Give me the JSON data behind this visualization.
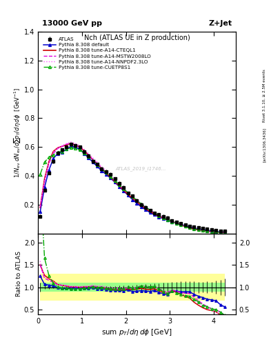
{
  "title_left": "13000 GeV pp",
  "title_right": "Z+Jet",
  "plot_title": "Nch (ATLAS UE in Z production)",
  "xlabel": "sum p_{T}/d\\eta d\\phi [GeV]",
  "ylabel_main": "1/N_{ev} dN_{ev}/dsum p_{T}/d\\eta d\\phi  [GeV^{-1}]",
  "ylabel_ratio": "Ratio to ATLAS",
  "right_label_1": "Rivet 3.1.10, ≥ 2.5M events",
  "right_label_2": "[arXiv:1306.3436]",
  "watermark": "ATLAS_2019_I1746...",
  "xlim": [
    0,
    4.5
  ],
  "ylim_main": [
    0,
    1.4
  ],
  "ylim_ratio": [
    0.4,
    2.2
  ],
  "ratio_yticks": [
    0.5,
    1.0,
    1.5,
    2.0
  ],
  "main_yticks": [
    0.2,
    0.4,
    0.6,
    0.8,
    1.0,
    1.2,
    1.4
  ],
  "x_data": [
    0.05,
    0.15,
    0.25,
    0.35,
    0.45,
    0.55,
    0.65,
    0.75,
    0.85,
    0.95,
    1.05,
    1.15,
    1.25,
    1.35,
    1.45,
    1.55,
    1.65,
    1.75,
    1.85,
    1.95,
    2.05,
    2.15,
    2.25,
    2.35,
    2.45,
    2.55,
    2.65,
    2.75,
    2.85,
    2.95,
    3.05,
    3.15,
    3.25,
    3.35,
    3.45,
    3.55,
    3.65,
    3.75,
    3.85,
    3.95,
    4.05,
    4.15,
    4.25
  ],
  "atlas_y": [
    0.12,
    0.3,
    0.42,
    0.5,
    0.56,
    0.58,
    0.6,
    0.62,
    0.61,
    0.6,
    0.57,
    0.54,
    0.5,
    0.48,
    0.45,
    0.43,
    0.41,
    0.38,
    0.35,
    0.32,
    0.28,
    0.26,
    0.23,
    0.2,
    0.18,
    0.16,
    0.14,
    0.13,
    0.12,
    0.11,
    0.09,
    0.08,
    0.07,
    0.06,
    0.05,
    0.045,
    0.04,
    0.035,
    0.03,
    0.025,
    0.02,
    0.018,
    0.016
  ],
  "atlas_yerr": [
    0.012,
    0.012,
    0.012,
    0.012,
    0.012,
    0.012,
    0.012,
    0.012,
    0.012,
    0.012,
    0.012,
    0.012,
    0.012,
    0.012,
    0.012,
    0.012,
    0.012,
    0.012,
    0.012,
    0.012,
    0.012,
    0.012,
    0.012,
    0.012,
    0.012,
    0.012,
    0.012,
    0.012,
    0.012,
    0.012,
    0.01,
    0.01,
    0.009,
    0.008,
    0.007,
    0.006,
    0.005,
    0.004,
    0.004,
    0.003,
    0.003,
    0.003,
    0.003
  ],
  "pythia_default_y": [
    0.15,
    0.32,
    0.44,
    0.52,
    0.555,
    0.565,
    0.585,
    0.605,
    0.6,
    0.585,
    0.555,
    0.525,
    0.495,
    0.465,
    0.435,
    0.41,
    0.385,
    0.355,
    0.325,
    0.295,
    0.265,
    0.235,
    0.21,
    0.185,
    0.165,
    0.145,
    0.13,
    0.115,
    0.103,
    0.092,
    0.082,
    0.073,
    0.063,
    0.054,
    0.045,
    0.038,
    0.032,
    0.027,
    0.022,
    0.018,
    0.014,
    0.011,
    0.009
  ],
  "pythia_cteql1_y": [
    0.18,
    0.38,
    0.5,
    0.57,
    0.595,
    0.605,
    0.615,
    0.625,
    0.615,
    0.6,
    0.575,
    0.545,
    0.51,
    0.48,
    0.45,
    0.42,
    0.39,
    0.36,
    0.33,
    0.3,
    0.27,
    0.245,
    0.22,
    0.195,
    0.172,
    0.152,
    0.135,
    0.12,
    0.107,
    0.095,
    0.083,
    0.071,
    0.059,
    0.048,
    0.038,
    0.03,
    0.024,
    0.019,
    0.015,
    0.012,
    0.009,
    0.007,
    0.005
  ],
  "pythia_mstw_y": [
    0.18,
    0.36,
    0.485,
    0.555,
    0.59,
    0.605,
    0.62,
    0.625,
    0.615,
    0.6,
    0.575,
    0.545,
    0.515,
    0.485,
    0.455,
    0.425,
    0.395,
    0.365,
    0.335,
    0.305,
    0.278,
    0.252,
    0.228,
    0.205,
    0.182,
    0.162,
    0.143,
    0.126,
    0.111,
    0.097,
    0.085,
    0.073,
    0.062,
    0.052,
    0.043,
    0.035,
    0.028,
    0.022,
    0.017,
    0.013,
    0.01,
    0.008,
    0.006
  ],
  "pythia_nnpdf_y": [
    0.19,
    0.37,
    0.495,
    0.565,
    0.595,
    0.61,
    0.625,
    0.635,
    0.625,
    0.61,
    0.585,
    0.555,
    0.525,
    0.495,
    0.465,
    0.435,
    0.405,
    0.375,
    0.345,
    0.315,
    0.285,
    0.258,
    0.232,
    0.208,
    0.185,
    0.163,
    0.143,
    0.125,
    0.109,
    0.095,
    0.082,
    0.07,
    0.059,
    0.049,
    0.04,
    0.032,
    0.026,
    0.02,
    0.016,
    0.012,
    0.009,
    0.007,
    0.005
  ],
  "pythia_cuetp_y": [
    0.41,
    0.495,
    0.53,
    0.545,
    0.565,
    0.57,
    0.585,
    0.595,
    0.59,
    0.58,
    0.56,
    0.535,
    0.505,
    0.478,
    0.45,
    0.422,
    0.394,
    0.366,
    0.338,
    0.31,
    0.282,
    0.256,
    0.23,
    0.206,
    0.184,
    0.162,
    0.143,
    0.125,
    0.109,
    0.095,
    0.082,
    0.07,
    0.059,
    0.049,
    0.04,
    0.033,
    0.027,
    0.021,
    0.017,
    0.013,
    0.01,
    0.008,
    0.006
  ],
  "colors": {
    "atlas": "#000000",
    "pythia_default": "#0000cc",
    "pythia_cteql1": "#cc0000",
    "pythia_mstw": "#dd00dd",
    "pythia_nnpdf": "#ff55ff",
    "pythia_cuetp": "#00aa00"
  },
  "band_yellow": "#ffff88",
  "band_green": "#88ff88",
  "background_color": "#ffffff",
  "legend_entries": [
    "ATLAS",
    "Pythia 8.308 default",
    "Pythia 8.308 tune-A14-CTEQL1",
    "Pythia 8.308 tune-A14-MSTW2008LO",
    "Pythia 8.308 tune-A14-NNPDF2.3LO",
    "Pythia 8.308 tune-CUETP8S1"
  ]
}
